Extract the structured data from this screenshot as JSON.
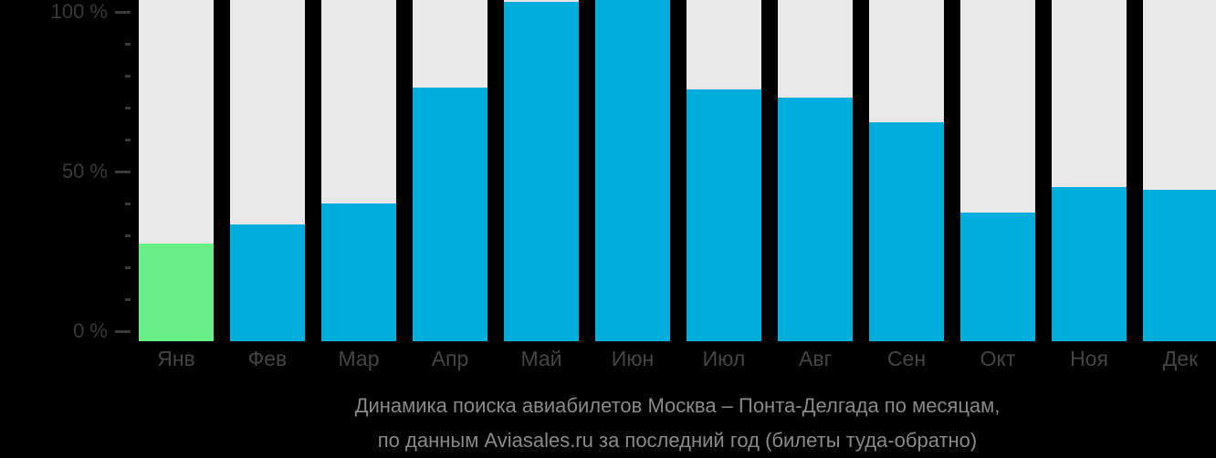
{
  "chart_data": {
    "type": "bar",
    "title": "Динамика поиска авиабилетов Москва – Понта-Делгада по месяцам, по данным Aviasales.ru за последний год (билеты туда-обратно)",
    "title_lines": [
      "Динамика поиска авиабилетов Москва – Понта-Делгада по месяцам,",
      "по данным Aviasales.ru за последний год (билеты туда-обратно)"
    ],
    "categories": [
      "Янв",
      "Фев",
      "Мар",
      "Апр",
      "Май",
      "Июн",
      "Июл",
      "Авг",
      "Сен",
      "Окт",
      "Ноя",
      "Дек"
    ],
    "values": [
      27.3,
      33.4,
      40.1,
      76.3,
      103.1,
      104,
      75.7,
      73.1,
      65.4,
      37.1,
      45.1,
      44.3
    ],
    "unit": "%",
    "highlight_index": 0,
    "xlabel": "",
    "ylabel": "",
    "y_axis": {
      "range": [
        0,
        100
      ],
      "major_ticks": [
        {
          "pct": 0,
          "label": "0 %"
        },
        {
          "pct": 50,
          "label": "50 %"
        },
        {
          "pct": 100,
          "label": "100 %"
        }
      ],
      "minor_step": 10
    },
    "grid": "off",
    "legend_position": "none",
    "colors": {
      "background": "#000000",
      "bar": "#00aedd",
      "highlight_bar": "#68ee87",
      "track": "#e8e8e8",
      "axis_text": "#3a3a3a",
      "month_text": "#454545",
      "title_text": "#8a8a8a"
    }
  }
}
